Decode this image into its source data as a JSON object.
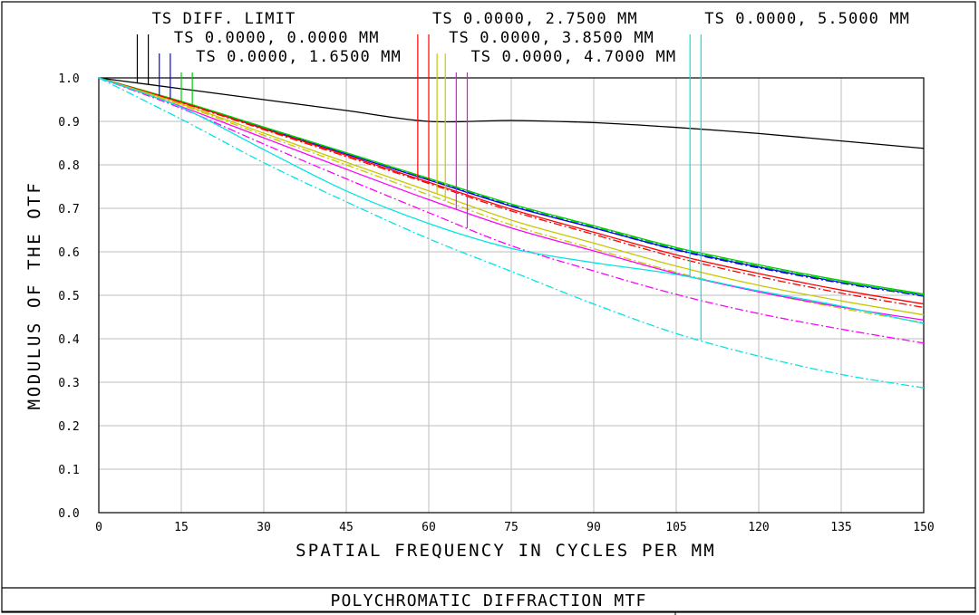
{
  "title_block": {
    "title": "POLYCHROMATIC DIFFRACTION MTF"
  },
  "chart_data": {
    "type": "line",
    "xlabel": "SPATIAL FREQUENCY IN CYCLES PER MM",
    "ylabel": "MODULUS OF THE OTF",
    "xlim": [
      0,
      150
    ],
    "ylim": [
      0,
      1
    ],
    "grid": true,
    "x_ticks": [
      "0",
      "15",
      "30",
      "45",
      "60",
      "75",
      "90",
      "105",
      "120",
      "135",
      "150"
    ],
    "y_ticks": [
      "0.0",
      "0.1",
      "0.2",
      "0.3",
      "0.4",
      "0.5",
      "0.6",
      "0.7",
      "0.8",
      "0.9",
      "1.0"
    ],
    "x": [
      0,
      15,
      30,
      45,
      60,
      75,
      90,
      105,
      120,
      135,
      150
    ],
    "series": [
      {
        "name": "TS DIFF. LIMIT",
        "color": "#000000",
        "dash": "solid",
        "values": [
          1.0,
          0.975,
          0.95,
          0.925,
          0.9,
          0.902,
          0.897,
          0.886,
          0.872,
          0.855,
          0.838
        ]
      },
      {
        "name": "TS 0.0000, 0.0000 MM",
        "color": "#0000ff",
        "dash": "solid",
        "values": [
          1.0,
          0.945,
          0.885,
          0.825,
          0.765,
          0.705,
          0.655,
          0.605,
          0.565,
          0.53,
          0.5
        ]
      },
      {
        "name": "TS 0.0000, 0.0000 MM",
        "color": "#0000ff",
        "dash": "dashdot",
        "values": [
          1.0,
          0.945,
          0.885,
          0.826,
          0.766,
          0.706,
          0.655,
          0.604,
          0.563,
          0.528,
          0.498
        ]
      },
      {
        "name": "TS 0.0000, 1.6500 MM",
        "color": "#00cc00",
        "dash": "solid",
        "values": [
          1.0,
          0.946,
          0.887,
          0.828,
          0.769,
          0.71,
          0.66,
          0.61,
          0.57,
          0.534,
          0.503
        ]
      },
      {
        "name": "TS 0.0000, 1.6500 MM",
        "color": "#00cc00",
        "dash": "dashdot",
        "values": [
          1.0,
          0.945,
          0.886,
          0.827,
          0.768,
          0.709,
          0.658,
          0.608,
          0.567,
          0.531,
          0.5
        ]
      },
      {
        "name": "TS 0.0000, 2.7500 MM",
        "color": "#ff0000",
        "dash": "solid",
        "values": [
          1.0,
          0.944,
          0.883,
          0.822,
          0.76,
          0.698,
          0.645,
          0.593,
          0.55,
          0.512,
          0.48
        ]
      },
      {
        "name": "TS 0.0000, 2.7500 MM",
        "color": "#ff0000",
        "dash": "dashdot",
        "values": [
          1.0,
          0.943,
          0.881,
          0.819,
          0.757,
          0.694,
          0.64,
          0.587,
          0.543,
          0.505,
          0.472
        ]
      },
      {
        "name": "TS 0.0000, 3.8500 MM",
        "color": "#c8c800",
        "dash": "solid",
        "values": [
          1.0,
          0.94,
          0.873,
          0.806,
          0.74,
          0.673,
          0.62,
          0.567,
          0.523,
          0.487,
          0.455
        ]
      },
      {
        "name": "TS 0.0000, 3.8500 MM",
        "color": "#c8c800",
        "dash": "dashdot",
        "values": [
          1.0,
          0.938,
          0.868,
          0.8,
          0.731,
          0.662,
          0.607,
          0.553,
          0.508,
          0.47,
          0.437
        ]
      },
      {
        "name": "TS 0.0000, 4.7000 MM",
        "color": "#ff00ff",
        "dash": "solid",
        "values": [
          1.0,
          0.934,
          0.862,
          0.79,
          0.72,
          0.655,
          0.602,
          0.55,
          0.508,
          0.473,
          0.443
        ]
      },
      {
        "name": "TS 0.0000, 4.7000 MM",
        "color": "#ff00ff",
        "dash": "dashdot",
        "values": [
          1.0,
          0.93,
          0.848,
          0.768,
          0.69,
          0.614,
          0.556,
          0.502,
          0.458,
          0.422,
          0.39
        ]
      },
      {
        "name": "TS 0.0000, 5.5000 MM",
        "color": "#00e5e5",
        "dash": "solid",
        "values": [
          1.0,
          0.932,
          0.835,
          0.74,
          0.665,
          0.608,
          0.575,
          0.548,
          0.51,
          0.475,
          0.435
        ]
      },
      {
        "name": "TS 0.0000, 5.5000 MM",
        "color": "#00e5e5",
        "dash": "dashdot",
        "values": [
          1.0,
          0.905,
          0.805,
          0.715,
          0.63,
          0.555,
          0.48,
          0.412,
          0.36,
          0.318,
          0.287
        ]
      }
    ],
    "legend": [
      {
        "label": "TS DIFF. LIMIT",
        "color": "#000000",
        "x": [
          7,
          9
        ]
      },
      {
        "label": "TS 0.0000, 0.0000 MM",
        "color": "#0000ff",
        "x": [
          11,
          13
        ]
      },
      {
        "label": "TS 0.0000, 1.6500 MM",
        "color": "#00cc00",
        "x": [
          15,
          17
        ]
      },
      {
        "label": "TS 0.0000, 2.7500 MM",
        "color": "#ff0000",
        "x": [
          58,
          60
        ]
      },
      {
        "label": "TS 0.0000, 3.8500 MM",
        "color": "#c8c800",
        "x": [
          61.5,
          63
        ]
      },
      {
        "label": "TS 0.0000, 4.7000 MM",
        "color": "#ff00ff",
        "x": [
          65,
          67
        ]
      },
      {
        "label": "TS 0.0000, 5.5000 MM",
        "color": "#00e5e5",
        "x": [
          107.5,
          109.5
        ]
      }
    ]
  }
}
